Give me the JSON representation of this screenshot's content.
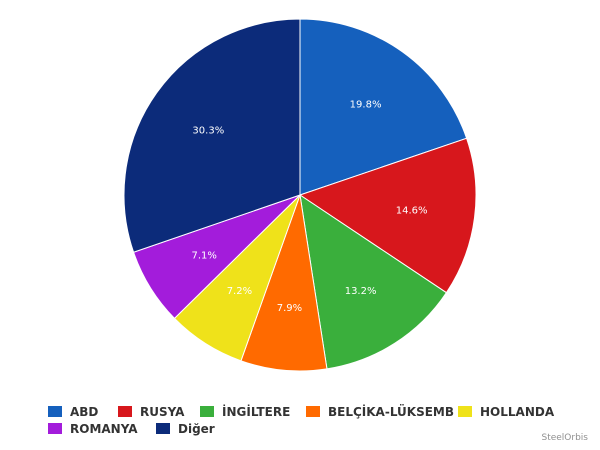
{
  "chart_data": {
    "type": "pie",
    "slices": [
      {
        "label": "ABD",
        "value": 19.8,
        "display": "19.8%",
        "color": "#1560bd"
      },
      {
        "label": "RUSYA",
        "value": 14.6,
        "display": "14.6%",
        "color": "#d7171c"
      },
      {
        "label": "İNGİLTERE",
        "value": 13.2,
        "display": "13.2%",
        "color": "#3aaf3c"
      },
      {
        "label": "BELÇİKA-LÜKSEMB",
        "value": 7.9,
        "display": "7.9%",
        "color": "#ff6a00"
      },
      {
        "label": "HOLLANDA",
        "value": 7.2,
        "display": "7.2%",
        "color": "#efe21a"
      },
      {
        "label": "ROMANYA",
        "value": 7.1,
        "display": "7.1%",
        "color": "#a31cdb"
      },
      {
        "label": "Diğer",
        "value": 30.3,
        "display": "30.3%",
        "color": "#0c2b7a"
      }
    ],
    "legend_position": "bottom"
  },
  "credit": "SteelOrbis"
}
